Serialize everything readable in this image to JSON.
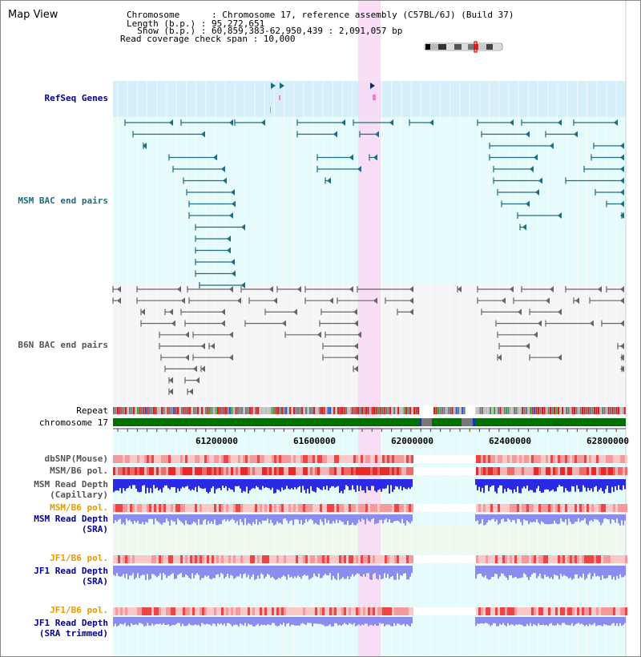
{
  "header": {
    "title": "Map View",
    "info_lines": [
      "Chromosome      : Chromosome 17, reference assembly (C57BL/6J) (Build 37)",
      "Length (b.p.) : 95,272,651",
      "  Show (b.p.) : 60,859,383-62,950,439 : 2,091,057 bp",
      "Read coverage check span : 10,000"
    ]
  },
  "tracks": {
    "refseq": "RefSeq Genes",
    "msm_bac": "MSM BAC end pairs",
    "b6n_bac": "B6N BAC end pairs",
    "repeat": "Repeat",
    "chromosome": "chromosome 17",
    "dbsnp": "dbSNP(Mouse)",
    "msm_b6_pol": "MSM/B6 pol.",
    "msm_depth_cap_1": "MSM Read Depth",
    "msm_depth_cap_2": "(Capillary)",
    "msm_b6_pol_2": "MSM/B6 pol.",
    "msm_depth_sra_1": "MSM Read Depth",
    "msm_depth_sra_2": "(SRA)",
    "jf1_b6_pol": "JF1/B6 pol.",
    "jf1_depth_1": "JF1 Read Depth",
    "jf1_depth_2": "(SRA)",
    "jf1_b6_pol_2": "JF1/B6 pol.",
    "jf1_trim_1": "JF1 Read Depth",
    "jf1_trim_2": "(SRA trimmed)"
  },
  "axis": {
    "ticks": [
      "61200000",
      "61600000",
      "62000000",
      "62400000",
      "62800000"
    ]
  },
  "colors": {
    "highlight": "#f9d8f3",
    "msm_bg": "#e6fbfb",
    "refseq_bg": "#d6f0fb",
    "b6n_bg": "#f5f5f8",
    "msm_bar": "#1f6b80",
    "b6n_bar": "#666666",
    "chromosome": "#007000",
    "depth_dark": "#2a2ae6",
    "depth_light": "#8c8cf0",
    "label_blue": "#000099",
    "label_orange": "#e69a00"
  }
}
